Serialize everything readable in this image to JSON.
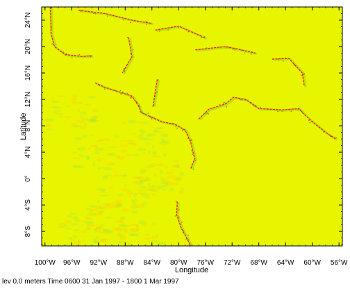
{
  "chart_data": {
    "type": "heatmap",
    "title": "",
    "xlabel": "Longitude",
    "ylabel": "Latitude",
    "xlim": [
      -100.5,
      -55.5
    ],
    "ylim": [
      -10.2,
      26
    ],
    "x_ticks": [
      {
        "value": -100,
        "label": "100°W"
      },
      {
        "value": -96,
        "label": "96°W"
      },
      {
        "value": -92,
        "label": "92°W"
      },
      {
        "value": -88,
        "label": "88°W"
      },
      {
        "value": -84,
        "label": "84°W"
      },
      {
        "value": -80,
        "label": "80°W"
      },
      {
        "value": -76,
        "label": "76°W"
      },
      {
        "value": -72,
        "label": "72°W"
      },
      {
        "value": -68,
        "label": "68°W"
      },
      {
        "value": -64,
        "label": "64°W"
      },
      {
        "value": -60,
        "label": "60°W"
      },
      {
        "value": -56,
        "label": "56°W"
      }
    ],
    "y_ticks": [
      {
        "value": 24,
        "label": "24°N"
      },
      {
        "value": 20,
        "label": "20°N"
      },
      {
        "value": 16,
        "label": "16°N"
      },
      {
        "value": 12,
        "label": "12°N"
      },
      {
        "value": 8,
        "label": "8°N"
      },
      {
        "value": 4,
        "label": "4°N"
      },
      {
        "value": 0,
        "label": "0°"
      },
      {
        "value": -4,
        "label": "4°S"
      },
      {
        "value": -8,
        "label": "8°S"
      }
    ],
    "background_color": "#e8f500",
    "colors": {
      "positive": "#d02020",
      "negative": "#20a040",
      "neutral": "#e8f500"
    },
    "features": [
      {
        "kind": "coast",
        "points": [
          [
            -99.2,
            26
          ],
          [
            -99.1,
            22
          ],
          [
            -98.6,
            20
          ],
          [
            -97,
            18.8
          ],
          [
            -94.5,
            18.5
          ],
          [
            -93,
            18.6
          ]
        ]
      },
      {
        "kind": "coast",
        "points": [
          [
            -92.5,
            14.5
          ],
          [
            -91,
            13.8
          ],
          [
            -88.5,
            13
          ],
          [
            -87,
            12.5
          ],
          [
            -86,
            11
          ],
          [
            -85.6,
            10
          ],
          [
            -84.5,
            9.5
          ]
        ]
      },
      {
        "kind": "coast",
        "points": [
          [
            -84.5,
            9.5
          ],
          [
            -82.5,
            8.6
          ],
          [
            -80.5,
            8.2
          ],
          [
            -79,
            7.3
          ],
          [
            -78.2,
            5.5
          ],
          [
            -77.6,
            3
          ],
          [
            -78.2,
            1.5
          ]
        ]
      },
      {
        "kind": "coast",
        "points": [
          [
            -80.2,
            -3.5
          ],
          [
            -80.3,
            -5.5
          ],
          [
            -79.6,
            -7.5
          ],
          [
            -78.8,
            -9
          ],
          [
            -78.2,
            -10.2
          ]
        ]
      },
      {
        "kind": "coast",
        "points": [
          [
            -77.5,
            19.5
          ],
          [
            -73,
            20
          ],
          [
            -71.5,
            19.7
          ],
          [
            -68.5,
            19
          ]
        ]
      },
      {
        "kind": "coast",
        "points": [
          [
            -83.5,
            22.5
          ],
          [
            -80,
            23.1
          ],
          [
            -76,
            21.3
          ]
        ]
      },
      {
        "kind": "coast",
        "points": [
          [
            -87.5,
            21.4
          ],
          [
            -87,
            18.5
          ],
          [
            -88.4,
            16
          ]
        ]
      },
      {
        "kind": "coast",
        "points": [
          [
            -83.2,
            15
          ],
          [
            -83.6,
            12.5
          ],
          [
            -83.8,
            11
          ]
        ]
      },
      {
        "kind": "coast",
        "points": [
          [
            -77,
            9
          ],
          [
            -75.5,
            10.5
          ],
          [
            -73,
            11.3
          ],
          [
            -71.8,
            12.3
          ],
          [
            -70,
            12
          ],
          [
            -68,
            10.6
          ],
          [
            -64.5,
            10.4
          ],
          [
            -62,
            10.6
          ],
          [
            -61.5,
            10
          ],
          [
            -60,
            8.6
          ],
          [
            -58,
            7
          ],
          [
            -56.5,
            6
          ]
        ]
      },
      {
        "kind": "coast",
        "points": [
          [
            -66,
            18.1
          ],
          [
            -63.5,
            18.2
          ],
          [
            -61.5,
            16
          ],
          [
            -61.2,
            14
          ]
        ]
      },
      {
        "kind": "coast",
        "points": [
          [
            -95,
            25.5
          ],
          [
            -91,
            25
          ],
          [
            -87,
            24
          ],
          [
            -84,
            23.5
          ]
        ]
      },
      {
        "kind": "noise",
        "points": [
          [
            -96,
            10
          ],
          [
            -92,
            4
          ],
          [
            -88,
            -2
          ],
          [
            -85,
            6
          ],
          [
            -90,
            -6
          ],
          [
            -83,
            0
          ],
          [
            -94,
            -8
          ],
          [
            -86,
            -9
          ]
        ]
      }
    ]
  },
  "footer": {
    "text": "lev 0.0 meters Time 0600 31 Jan 1997 - 1800 1 Mar 1997"
  }
}
